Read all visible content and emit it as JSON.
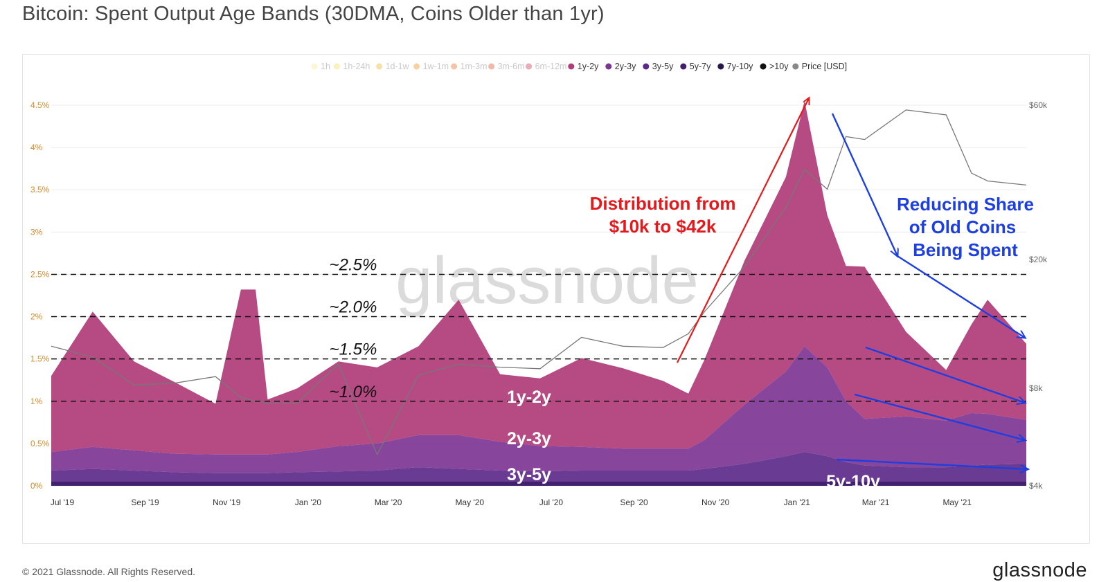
{
  "title": "Bitcoin: Spent Output Age Bands (30DMA, Coins Older than 1yr)",
  "footer": {
    "copyright": "© 2021 Glassnode. All Rights Reserved.",
    "brand": "glassnode"
  },
  "watermark": "glassnode",
  "legend": [
    {
      "label": "1h",
      "color": "#f6ee9b",
      "faded": true
    },
    {
      "label": "1h-24h",
      "color": "#f3df6a",
      "faded": true
    },
    {
      "label": "1d-1w",
      "color": "#f2b73e",
      "faded": true
    },
    {
      "label": "1w-1m",
      "color": "#ef9a36",
      "faded": true
    },
    {
      "label": "1m-3m",
      "color": "#e97b38",
      "faded": true
    },
    {
      "label": "3m-6m",
      "color": "#e0633e",
      "faded": true
    },
    {
      "label": "6m-12m",
      "color": "#c9485e",
      "faded": true
    },
    {
      "label": "1y-2y",
      "color": "#b03c78",
      "faded": false
    },
    {
      "label": "2y-3y",
      "color": "#7d3594",
      "faded": false
    },
    {
      "label": "3y-5y",
      "color": "#5c2a8a",
      "faded": false
    },
    {
      "label": "5y-7y",
      "color": "#3e1f6b",
      "faded": false
    },
    {
      "label": "7y-10y",
      "color": "#26184a",
      "faded": false
    },
    {
      "label": ">10y",
      "color": "#111111",
      "faded": false
    },
    {
      "label": "Price [USD]",
      "color": "#888888",
      "faded": false
    }
  ],
  "annotations": {
    "reference_lines": [
      "~2.5%",
      "~2.0%",
      "~1.5%",
      "~1.0%"
    ],
    "distribution_line1": "Distribution from",
    "distribution_line2": "$10k to $42k",
    "reducing_line1": "Reducing Share",
    "reducing_line2": "of Old Coins",
    "reducing_line3": "Being Spent",
    "band_labels": [
      "1y-2y",
      "2y-3y",
      "3y-5y",
      "5y-10y"
    ],
    "red_color": "#e3191c",
    "blue_color": "#1e3fe0"
  },
  "chart_data": {
    "type": "area",
    "stacked": true,
    "x": [
      "2019-07-01",
      "2019-08-01",
      "2019-09-01",
      "2019-10-01",
      "2019-11-01",
      "2019-11-20",
      "2019-12-01",
      "2019-12-10",
      "2020-01-01",
      "2020-02-01",
      "2020-03-01",
      "2020-04-01",
      "2020-05-01",
      "2020-06-01",
      "2020-07-01",
      "2020-08-01",
      "2020-09-01",
      "2020-10-01",
      "2020-10-20",
      "2020-11-01",
      "2020-12-01",
      "2021-01-01",
      "2021-01-15",
      "2021-02-01",
      "2021-02-15",
      "2021-03-01",
      "2021-04-01",
      "2021-05-01",
      "2021-05-20",
      "2021-06-01",
      "2021-06-30"
    ],
    "x_tick_labels": [
      "Jul '19",
      "Sep '19",
      "Nov '19",
      "Jan '20",
      "Mar '20",
      "May '20",
      "Jul '20",
      "Sep '20",
      "Nov '20",
      "Jan '21",
      "Mar '21",
      "May '21"
    ],
    "y_tick_labels": [
      "0%",
      "0.5%",
      "1%",
      "1.5%",
      "2%",
      "2.5%",
      "3%",
      "3.5%",
      "4%",
      "4.5%"
    ],
    "y_right_tick_labels": [
      "$4k",
      "$8k",
      "$20k",
      "$60k"
    ],
    "ylim": [
      0,
      4.6
    ],
    "series": [
      {
        "name": "3y-5y",
        "color": "#5c2a8a",
        "values": [
          0.18,
          0.2,
          0.18,
          0.16,
          0.15,
          0.15,
          0.15,
          0.15,
          0.16,
          0.17,
          0.18,
          0.22,
          0.2,
          0.18,
          0.17,
          0.18,
          0.18,
          0.18,
          0.18,
          0.2,
          0.26,
          0.35,
          0.4,
          0.35,
          0.28,
          0.24,
          0.22,
          0.22,
          0.24,
          0.25,
          0.26
        ]
      },
      {
        "name": "2y-3y",
        "color": "#7d3594",
        "values": [
          0.22,
          0.26,
          0.24,
          0.22,
          0.22,
          0.22,
          0.22,
          0.22,
          0.24,
          0.3,
          0.32,
          0.38,
          0.4,
          0.34,
          0.3,
          0.28,
          0.26,
          0.26,
          0.26,
          0.34,
          0.7,
          1.0,
          1.25,
          1.05,
          0.72,
          0.55,
          0.6,
          0.55,
          0.62,
          0.6,
          0.52
        ]
      },
      {
        "name": "1y-2y",
        "color": "#b03c78",
        "values": [
          0.9,
          1.6,
          1.05,
          0.85,
          0.6,
          1.95,
          1.95,
          0.65,
          0.75,
          1.0,
          0.9,
          1.05,
          1.6,
          0.8,
          0.8,
          1.05,
          0.95,
          0.8,
          0.65,
          0.95,
          1.7,
          2.3,
          2.9,
          1.8,
          1.6,
          1.8,
          1.0,
          0.6,
          1.05,
          1.35,
          0.9
        ]
      }
    ],
    "price_usd": [
      10800,
      10000,
      8200,
      8300,
      8700,
      7500,
      7300,
      7200,
      7200,
      9500,
      5000,
      8800,
      9500,
      9300,
      9200,
      11500,
      10800,
      10700,
      11800,
      13800,
      19000,
      29000,
      38000,
      33000,
      48000,
      47000,
      58000,
      56000,
      37000,
      35000,
      34000
    ]
  }
}
